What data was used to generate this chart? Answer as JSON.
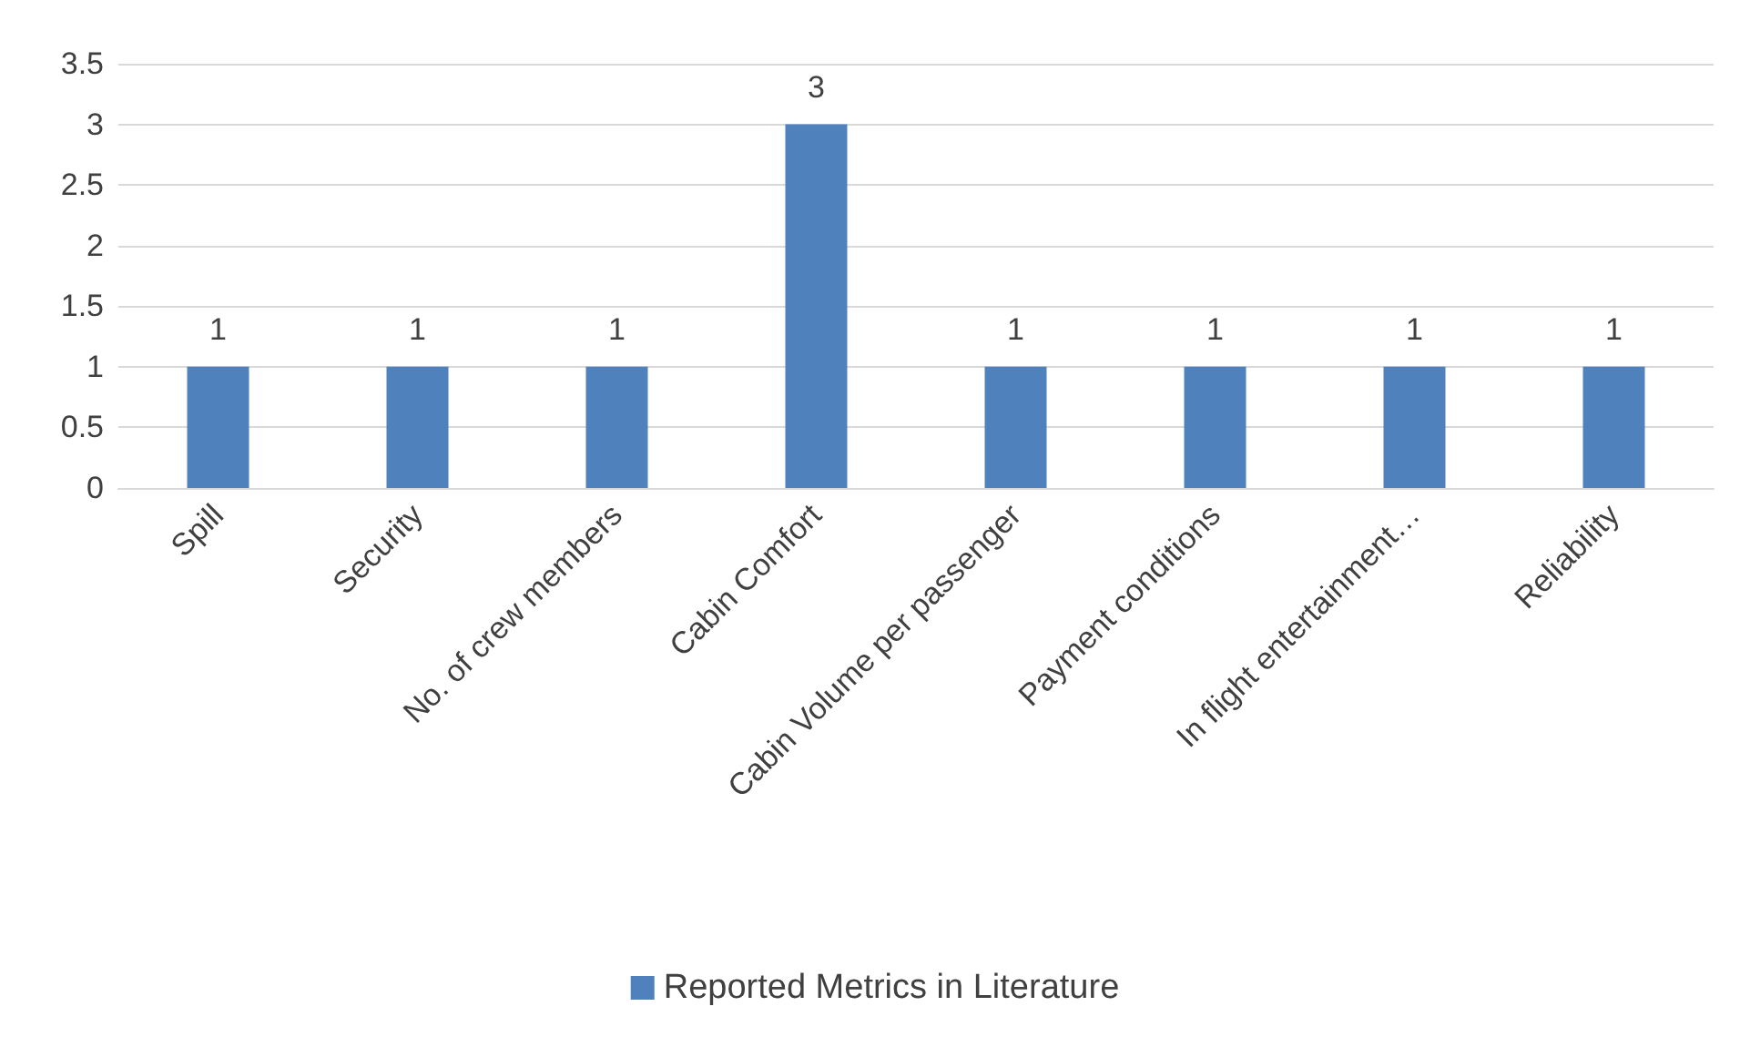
{
  "chart_data": {
    "type": "bar",
    "categories": [
      "Spill",
      "Security",
      "No. of crew members",
      "Cabin Comfort",
      "Cabin Volume per passenger",
      "Payment conditions",
      "In flight entertainment…",
      "Reliability"
    ],
    "series": [
      {
        "name": "Reported Metrics in Literature",
        "color": "#4f81bd",
        "values": [
          1,
          1,
          1,
          3,
          1,
          1,
          1,
          1
        ]
      }
    ],
    "ylim": [
      0,
      3.5
    ],
    "yticks": [
      0,
      0.5,
      1,
      1.5,
      2,
      2.5,
      3,
      3.5
    ],
    "grid": "y",
    "legend": "bottom",
    "data_labels": true
  }
}
